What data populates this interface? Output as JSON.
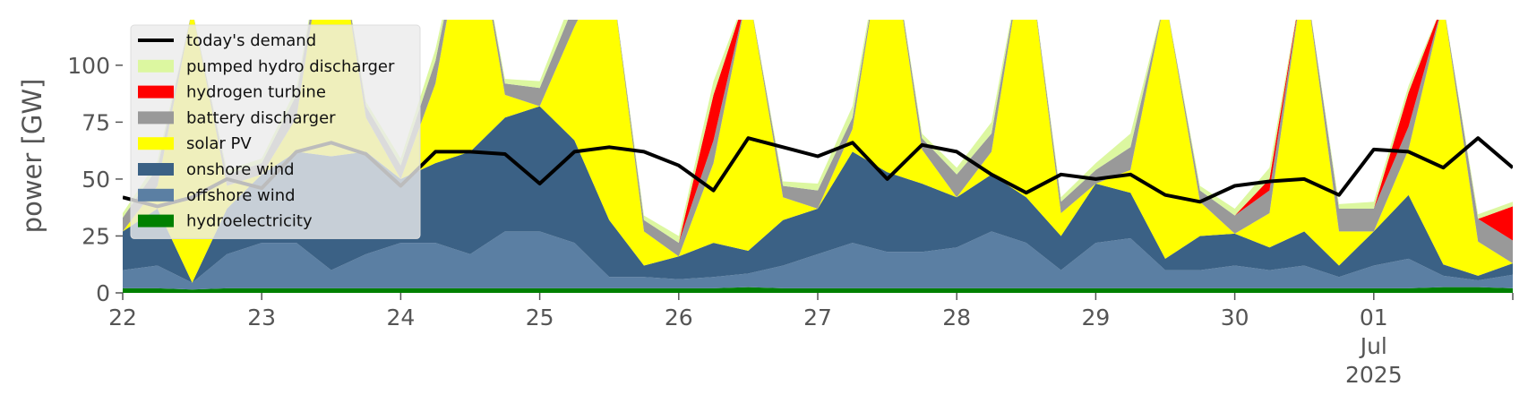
{
  "chart_data": {
    "type": "area",
    "ylabel": "power [GW]",
    "ylim": [
      0,
      120
    ],
    "yticks": [
      0,
      25,
      50,
      75,
      100
    ],
    "xlim": [
      "2025-06-22T00:00",
      "2025-07-02T00:00"
    ],
    "xticks": [
      {
        "date": "2025-06-22",
        "label": "22"
      },
      {
        "date": "2025-06-23",
        "label": "23"
      },
      {
        "date": "2025-06-24",
        "label": "24"
      },
      {
        "date": "2025-06-25",
        "label": "25"
      },
      {
        "date": "2025-06-26",
        "label": "26"
      },
      {
        "date": "2025-06-27",
        "label": "27"
      },
      {
        "date": "2025-06-28",
        "label": "28"
      },
      {
        "date": "2025-06-29",
        "label": "29"
      },
      {
        "date": "2025-06-30",
        "label": "30"
      },
      {
        "date": "2025-07-01",
        "label": "01",
        "sub1": "Jul",
        "sub2": "2025"
      },
      {
        "date": "2025-07-02",
        "label": ""
      }
    ],
    "grid": false,
    "legend_position": "top-left",
    "x": [
      "2025-06-22T00:00",
      "2025-06-22T06:00",
      "2025-06-22T12:00",
      "2025-06-22T18:00",
      "2025-06-23T00:00",
      "2025-06-23T06:00",
      "2025-06-23T12:00",
      "2025-06-23T18:00",
      "2025-06-24T00:00",
      "2025-06-24T06:00",
      "2025-06-24T12:00",
      "2025-06-24T18:00",
      "2025-06-25T00:00",
      "2025-06-25T06:00",
      "2025-06-25T12:00",
      "2025-06-25T18:00",
      "2025-06-26T00:00",
      "2025-06-26T06:00",
      "2025-06-26T12:00",
      "2025-06-26T18:00",
      "2025-06-27T00:00",
      "2025-06-27T06:00",
      "2025-06-27T12:00",
      "2025-06-27T18:00",
      "2025-06-28T00:00",
      "2025-06-28T06:00",
      "2025-06-28T12:00",
      "2025-06-28T18:00",
      "2025-06-29T00:00",
      "2025-06-29T06:00",
      "2025-06-29T12:00",
      "2025-06-29T18:00",
      "2025-06-30T00:00",
      "2025-06-30T06:00",
      "2025-06-30T12:00",
      "2025-06-30T18:00",
      "2025-07-01T00:00",
      "2025-07-01T06:00",
      "2025-07-01T12:00",
      "2025-07-01T18:00",
      "2025-07-02T00:00"
    ],
    "series": [
      {
        "name": "hydroelectricity",
        "color": "#008000",
        "values": [
          2,
          2,
          1.5,
          2,
          2,
          2,
          2,
          2,
          2,
          2,
          2,
          2,
          2,
          2,
          2,
          2,
          2,
          2,
          2.5,
          2,
          2,
          2,
          2,
          2,
          2,
          2,
          2,
          2,
          2,
          2,
          2,
          2,
          2,
          2,
          2,
          2,
          2,
          2,
          2.5,
          2.5,
          2
        ]
      },
      {
        "name": "offshore wind",
        "color": "#5b7fa3",
        "values": [
          8,
          10,
          3,
          15,
          20,
          20,
          8,
          15,
          20,
          20,
          15,
          25,
          25,
          20,
          5,
          5,
          4,
          5,
          6,
          10,
          15,
          20,
          16,
          16,
          18,
          25,
          20,
          8,
          20,
          22,
          8,
          8,
          10,
          8,
          10,
          5,
          10,
          13,
          5,
          3,
          6
        ]
      },
      {
        "name": "onshore wind",
        "color": "#3b6185",
        "values": [
          17,
          25,
          0,
          20,
          30,
          40,
          50,
          45,
          28,
          35,
          45,
          50,
          55,
          45,
          25,
          5,
          10,
          15,
          10,
          20,
          20,
          40,
          35,
          30,
          22,
          25,
          20,
          15,
          26,
          20,
          5,
          15,
          14,
          10,
          15,
          5,
          15,
          28,
          5,
          2,
          5
        ]
      },
      {
        "name": "solar PV",
        "color": "#ffff00",
        "values": [
          0,
          10,
          120,
          10,
          0,
          15,
          115,
          15,
          0,
          35,
          115,
          10,
          0,
          50,
          115,
          15,
          0,
          35,
          115,
          10,
          0,
          10,
          115,
          15,
          0,
          10,
          115,
          10,
          0,
          10,
          115,
          15,
          0,
          15,
          115,
          15,
          0,
          20,
          115,
          15,
          0
        ]
      },
      {
        "name": "battery discharger",
        "color": "#999999",
        "values": [
          6,
          8,
          0,
          5,
          5,
          10,
          0,
          5,
          6,
          10,
          0,
          5,
          8,
          10,
          0,
          5,
          6,
          10,
          0,
          5,
          8,
          5,
          0,
          5,
          10,
          8,
          0,
          5,
          6,
          10,
          0,
          5,
          8,
          10,
          0,
          10,
          10,
          10,
          0,
          10,
          10
        ]
      },
      {
        "name": "hydrogen turbine",
        "color": "#ff0000",
        "values": [
          0,
          0,
          0,
          0,
          0,
          0,
          0,
          0,
          0,
          0,
          0,
          0,
          0,
          0,
          0,
          0,
          0,
          20,
          0,
          0,
          0,
          0,
          0,
          0,
          0,
          0,
          0,
          0,
          0,
          0,
          0,
          0,
          0,
          5,
          0,
          0,
          0,
          15,
          0,
          0,
          15
        ]
      },
      {
        "name": "pumped hydro discharger",
        "color": "#dcf7a0",
        "values": [
          2,
          3,
          0,
          2,
          2,
          3,
          0,
          2,
          3,
          5,
          0,
          2,
          3,
          5,
          0,
          2,
          3,
          6,
          0,
          2,
          3,
          5,
          0,
          2,
          3,
          5,
          0,
          2,
          3,
          6,
          0,
          2,
          3,
          5,
          0,
          2,
          3,
          3,
          0,
          2,
          2
        ]
      }
    ],
    "demand": {
      "name": "today's demand",
      "color": "#000000",
      "values": [
        42,
        38,
        42,
        50,
        46,
        62,
        66,
        61,
        47,
        62,
        62,
        61,
        48,
        62,
        64,
        62,
        56,
        45,
        68,
        64,
        60,
        66,
        50,
        65,
        62,
        52,
        44,
        52,
        50,
        52,
        43,
        40,
        47,
        49,
        50,
        43,
        63,
        62,
        55,
        68,
        55
      ]
    }
  }
}
